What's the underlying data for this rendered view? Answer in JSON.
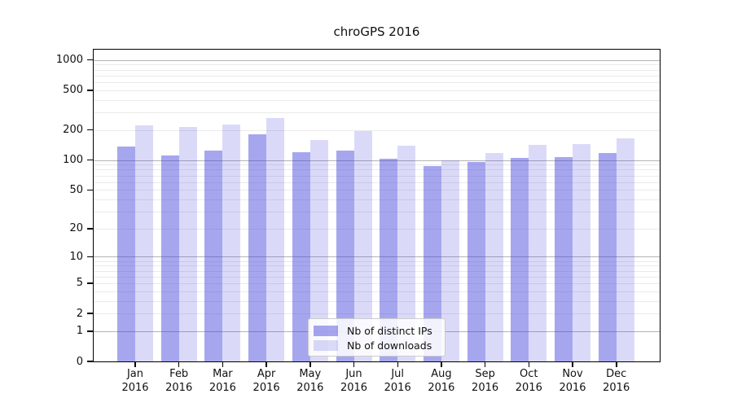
{
  "title": "chroGPS 2016",
  "colors": {
    "bar_base": "#4444DD",
    "grid_major": "#B3B3B3",
    "grid_minor": "#EAEAEA",
    "axis": "#000000",
    "text": "#111111",
    "legend_border": "#CCCCCC"
  },
  "chart_data": {
    "type": "bar",
    "title": "chroGPS 2016",
    "categories": [
      "Jan 2016",
      "Feb 2016",
      "Mar 2016",
      "Apr 2016",
      "May 2016",
      "Jun 2016",
      "Jul 2016",
      "Aug 2016",
      "Sep 2016",
      "Oct 2016",
      "Nov 2016",
      "Dec 2016"
    ],
    "series": [
      {
        "name": "Nb of distinct IPs",
        "color": "#4444DD",
        "alpha": 0.48,
        "values": [
          137,
          111,
          124,
          180,
          120,
          124,
          104,
          87,
          96,
          105,
          108,
          118
        ]
      },
      {
        "name": "Nb of downloads",
        "color": "#4444DD",
        "alpha": 0.2,
        "values": [
          222,
          214,
          228,
          263,
          160,
          195,
          138,
          100,
          117,
          143,
          144,
          164
        ]
      }
    ],
    "xlabel": "",
    "ylabel": "",
    "y_scale": "log10(value+1)",
    "y_ticks": [
      0,
      1,
      2,
      5,
      10,
      20,
      50,
      100,
      200,
      500,
      1000
    ],
    "ylim": [
      0,
      1265
    ],
    "grid": "on",
    "legend_position": "bottom-center"
  }
}
